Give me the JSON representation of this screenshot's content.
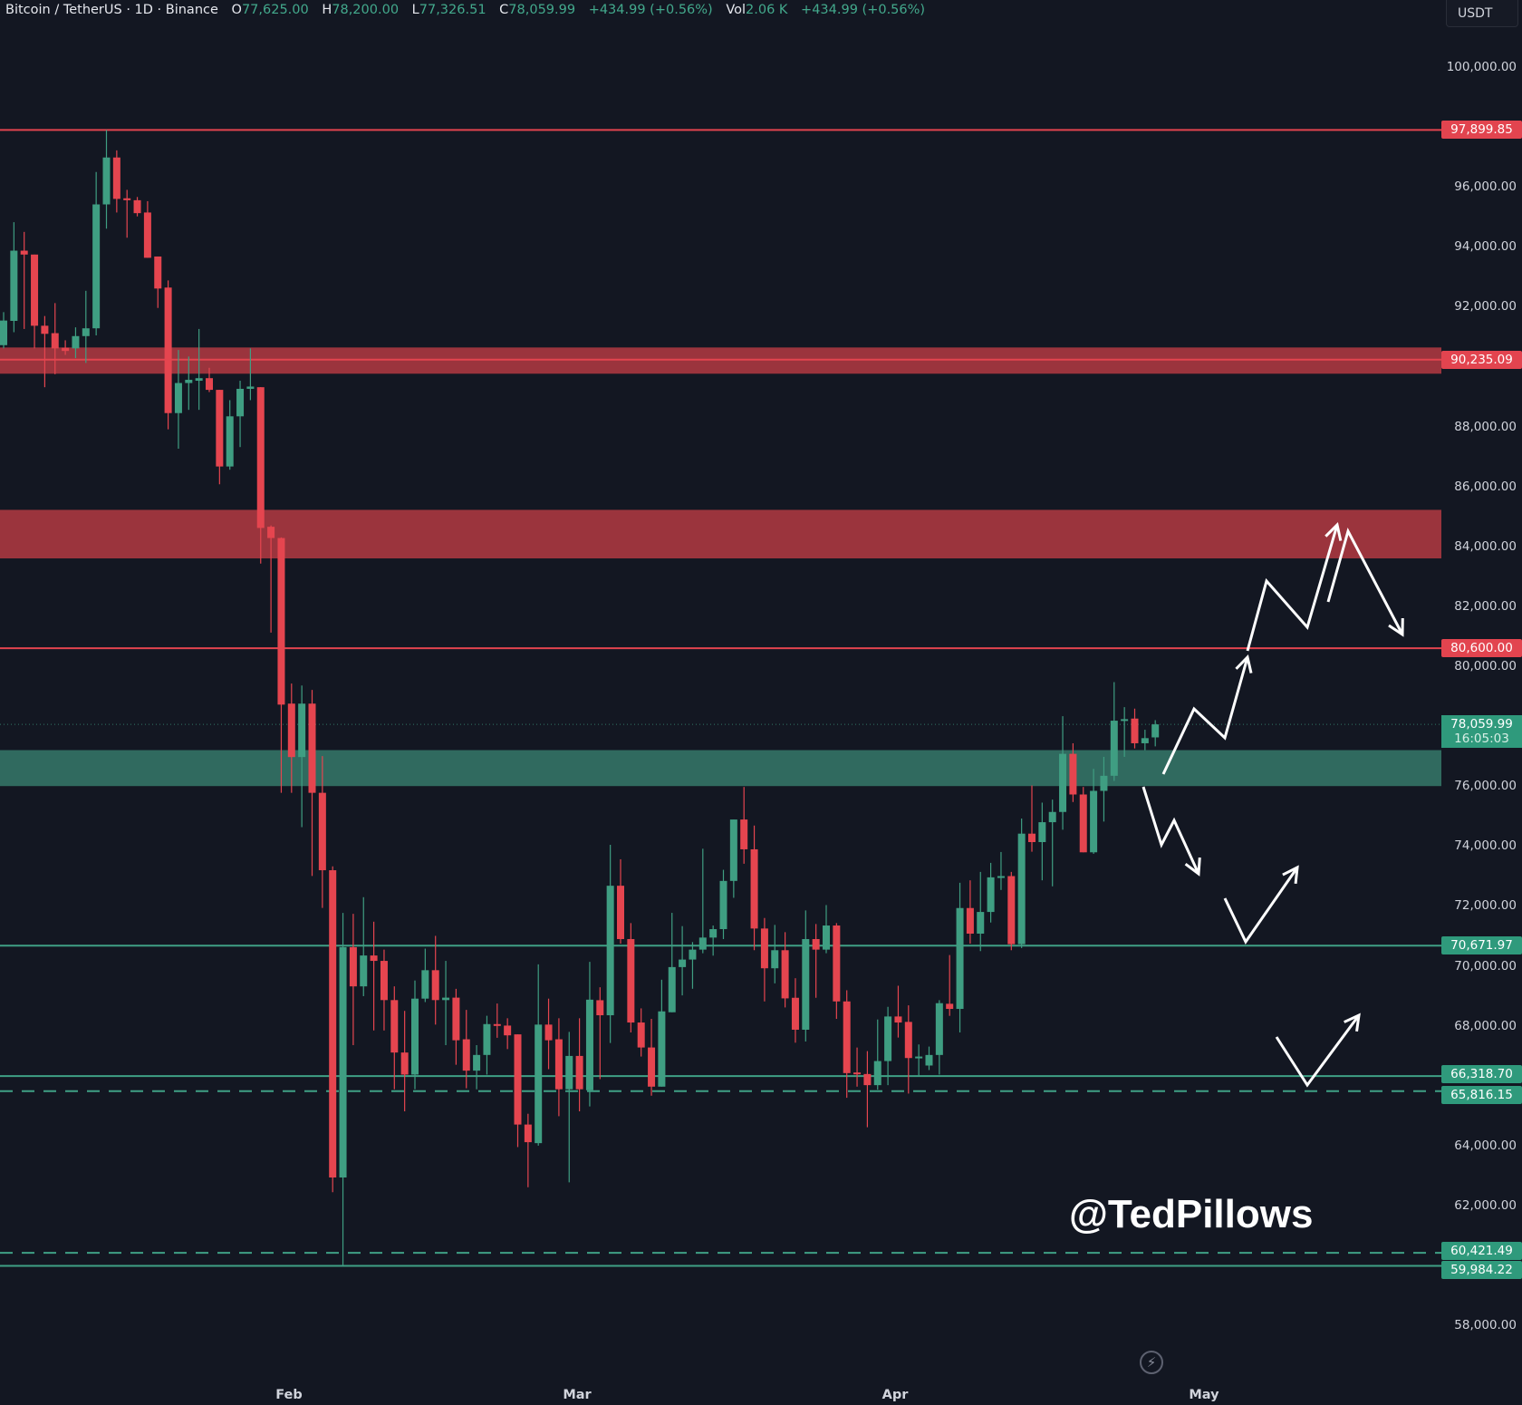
{
  "header": {
    "symbol": "Bitcoin / TetherUS · 1D · Binance",
    "o_label": "O",
    "o": "77,625.00",
    "h_label": "H",
    "h": "78,200.00",
    "l_label": "L",
    "l": "77,326.51",
    "c_label": "C",
    "c": "78,059.99",
    "change": "+434.99 (+0.56%)",
    "vol_label": "Vol",
    "vol": "2.06 K",
    "vol_change": "+434.99 (+0.56%)"
  },
  "unit": "USDT",
  "watermark": "@TedPillows",
  "icons": {
    "replay": "lightning-bolt-icon"
  },
  "colors": {
    "up": "#3f9e82",
    "down": "#e5454f",
    "background": "#131722",
    "resistance": "#e2444f",
    "support": "#3fa085",
    "resistance_zone": "#a2363f",
    "support_zone": "#316f63",
    "annotation": "#ffffff"
  },
  "chart_data": {
    "type": "candlestick",
    "interval": "1D",
    "x_tick_labels": [
      "Feb",
      "Mar",
      "Apr",
      "May"
    ],
    "ylim": [
      54000,
      102000
    ],
    "price_axis_ticks": [
      "100,000.00",
      "96,000.00",
      "94,000.00",
      "92,000.00",
      "88,000.00",
      "86,000.00",
      "84,000.00",
      "82,000.00",
      "80,000.00",
      "76,000.00",
      "74,000.00",
      "72,000.00",
      "70,000.00",
      "68,000.00",
      "64,000.00",
      "62,000.00",
      "58,000.00"
    ],
    "ohlc": [
      [
        90718,
        91820,
        90610,
        91539
      ],
      [
        91528,
        94822,
        91150,
        93872
      ],
      [
        93872,
        94498,
        91258,
        93742
      ],
      [
        93742,
        93742,
        90610,
        91366
      ],
      [
        91366,
        91690,
        89314,
        91096
      ],
      [
        91118,
        92122,
        89746,
        90610
      ],
      [
        90632,
        90880,
        90394,
        90524
      ],
      [
        90610,
        91312,
        90286,
        91020
      ],
      [
        91020,
        92532,
        90124,
        91280
      ],
      [
        91280,
        96496,
        91042,
        95416
      ],
      [
        95416,
        97900,
        94606,
        96982
      ],
      [
        96982,
        97220,
        95146,
        95600
      ],
      [
        95620,
        95902,
        94304,
        95556
      ],
      [
        95556,
        95664,
        95016,
        95124
      ],
      [
        95146,
        95524,
        93634,
        93634
      ],
      [
        93677,
        93677,
        91960,
        92608
      ],
      [
        92640,
        92878,
        87910,
        88450
      ],
      [
        88450,
        90556,
        87262,
        89454
      ],
      [
        89454,
        90340,
        88558,
        89562
      ],
      [
        89530,
        91258,
        88558,
        89616
      ],
      [
        89616,
        89962,
        89152,
        89226
      ],
      [
        89226,
        89226,
        86074,
        86668
      ],
      [
        86668,
        88882,
        86560,
        88342
      ],
      [
        88342,
        89530,
        87316,
        89260
      ],
      [
        89260,
        90610,
        88882,
        89336
      ],
      [
        89314,
        89314,
        83428,
        84616
      ],
      [
        84656,
        84700,
        81123,
        84280
      ],
      [
        84280,
        84300,
        75775,
        78719
      ],
      [
        78752,
        79423,
        75775,
        76969
      ],
      [
        76969,
        79358,
        74630,
        78752
      ],
      [
        78752,
        79210,
        73000,
        75775
      ],
      [
        75775,
        77002,
        71931,
        73191
      ],
      [
        73191,
        73322,
        62445,
        62935
      ],
      [
        62935,
        71768,
        59990,
        70623
      ],
      [
        70623,
        71735,
        67352,
        69314
      ],
      [
        69314,
        72291,
        68987,
        70345
      ],
      [
        70345,
        71473,
        67843,
        70165
      ],
      [
        70165,
        70541,
        67842,
        68856
      ],
      [
        68856,
        69314,
        65880,
        67106
      ],
      [
        67106,
        68496,
        65143,
        66370
      ],
      [
        66370,
        69510,
        65880,
        68905
      ],
      [
        68905,
        70574,
        68790,
        69854
      ],
      [
        69854,
        71000,
        68038,
        68856
      ],
      [
        68856,
        70165,
        67352,
        68938
      ],
      [
        68938,
        69232,
        66697,
        67515
      ],
      [
        67548,
        68529,
        65913,
        66501
      ],
      [
        66501,
        67352,
        65880,
        67025
      ],
      [
        67025,
        68333,
        66370,
        68055
      ],
      [
        68055,
        68742,
        67597,
        68005
      ],
      [
        68005,
        68250,
        67221,
        67679
      ],
      [
        67712,
        67712,
        63950,
        64702
      ],
      [
        64702,
        65062,
        62609,
        64113
      ],
      [
        64081,
        70050,
        63999,
        68038
      ],
      [
        68038,
        68905,
        66550,
        67515
      ],
      [
        67548,
        68250,
        64980,
        65880
      ],
      [
        65880,
        67794,
        62773,
        66992
      ],
      [
        66992,
        68250,
        65143,
        65880
      ],
      [
        65847,
        70132,
        65307,
        68870
      ],
      [
        68852,
        69284,
        66218,
        68350
      ],
      [
        68350,
        74040,
        67425,
        72673
      ],
      [
        72673,
        73557,
        70742,
        70893
      ],
      [
        70893,
        71426,
        67776,
        68108
      ],
      [
        68108,
        68580,
        66972,
        67274
      ],
      [
        67274,
        68229,
        65665,
        65967
      ],
      [
        65967,
        69536,
        65967,
        68480
      ],
      [
        68450,
        71768,
        68450,
        69958
      ],
      [
        69958,
        71325,
        69013,
        70209
      ],
      [
        70209,
        70793,
        69234,
        70541
      ],
      [
        70541,
        73909,
        70420,
        70943
      ],
      [
        70943,
        71346,
        70340,
        71225
      ],
      [
        71225,
        73205,
        70893,
        72834
      ],
      [
        72834,
        74884,
        72271,
        74884
      ],
      [
        74884,
        75970,
        73407,
        73889
      ],
      [
        73889,
        74683,
        70521,
        71245
      ],
      [
        71245,
        71597,
        68812,
        69918
      ],
      [
        69918,
        71366,
        69415,
        70521
      ],
      [
        70521,
        71124,
        68611,
        68913
      ],
      [
        68933,
        69586,
        67434,
        67867
      ],
      [
        67867,
        71848,
        67475,
        70893
      ],
      [
        70893,
        71396,
        68933,
        70541
      ],
      [
        70541,
        72029,
        70420,
        71346
      ],
      [
        71346,
        71426,
        68229,
        68812
      ],
      [
        68812,
        69184,
        65595,
        66419
      ],
      [
        66439,
        67273,
        65967,
        66389
      ],
      [
        66389,
        67153,
        64612,
        66017
      ],
      [
        66017,
        68209,
        65866,
        66821
      ],
      [
        66821,
        68631,
        66017,
        68309
      ],
      [
        68309,
        69335,
        67606,
        68108
      ],
      [
        68128,
        68681,
        65736,
        66922
      ],
      [
        66922,
        67375,
        66318,
        66972
      ],
      [
        66672,
        67305,
        66521,
        67024
      ],
      [
        67024,
        68853,
        66371,
        68753
      ],
      [
        68733,
        70360,
        68330,
        68562
      ],
      [
        68562,
        72773,
        67776,
        71929
      ],
      [
        71929,
        72854,
        70742,
        71074
      ],
      [
        71074,
        73135,
        70491,
        71798
      ],
      [
        71798,
        73437,
        71446,
        72954
      ],
      [
        72934,
        73799,
        72532,
        72995
      ],
      [
        72995,
        73135,
        70521,
        70722
      ],
      [
        70722,
        74915,
        70592,
        74412
      ],
      [
        74412,
        76021,
        73809,
        74130
      ],
      [
        74130,
        75447,
        72854,
        74794
      ],
      [
        74794,
        75548,
        72653,
        75136
      ],
      [
        75136,
        78333,
        74543,
        77077
      ],
      [
        77077,
        77429,
        75468,
        75719
      ],
      [
        75719,
        75970,
        73789,
        73789
      ],
      [
        73789,
        76574,
        73739,
        75840
      ],
      [
        75840,
        76976,
        74815,
        76343
      ],
      [
        76343,
        79470,
        76172,
        78183
      ],
      [
        78183,
        78635,
        76976,
        78233
      ],
      [
        78253,
        78585,
        77257,
        77429
      ],
      [
        77429,
        77881,
        77197,
        77600
      ],
      [
        77625,
        78200,
        77326,
        78060
      ]
    ],
    "levels": [
      {
        "price": 97899.85,
        "label": "97,899.85",
        "kind": "resistance",
        "style": "solid"
      },
      {
        "price": 90235.09,
        "label": "90,235.09",
        "kind": "resistance",
        "style": "solid"
      },
      {
        "price": 80600.0,
        "label": "80,600.00",
        "kind": "resistance",
        "style": "solid"
      },
      {
        "price": 70671.97,
        "label": "70,671.97",
        "kind": "support",
        "style": "solid"
      },
      {
        "price": 66318.7,
        "label": "66,318.70",
        "kind": "support",
        "style": "solid"
      },
      {
        "price": 65816.15,
        "label": "65,816.15",
        "kind": "support",
        "style": "dashed"
      },
      {
        "price": 60421.49,
        "label": "60,421.49",
        "kind": "support",
        "style": "dashed"
      },
      {
        "price": 59984.22,
        "label": "59,984.22",
        "kind": "support",
        "style": "solid"
      }
    ],
    "zones": [
      {
        "top": 90640,
        "bottom": 89765,
        "kind": "resistance"
      },
      {
        "top": 85220,
        "bottom": 83600,
        "kind": "resistance"
      },
      {
        "top": 77200,
        "bottom": 76000,
        "kind": "support"
      }
    ],
    "last_price": {
      "price": 78059.99,
      "label": "78,059.99",
      "countdown": "16:05:03"
    }
  }
}
